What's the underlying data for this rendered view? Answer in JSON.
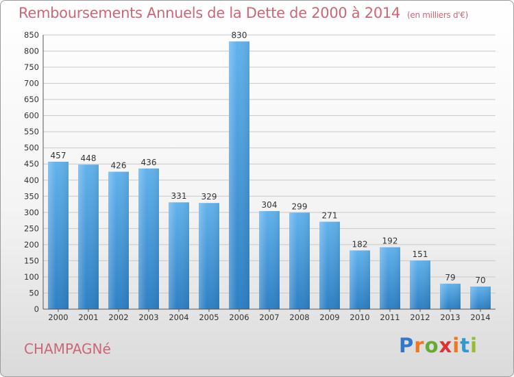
{
  "title": "Remboursements Annuels de la Dette de 2000 à 2014",
  "unit": "(en milliers d'€)",
  "footer": {
    "town": "CHAMPAGNé"
  },
  "logo": {
    "letters": [
      "P",
      "r",
      "o",
      "x",
      "i",
      "t",
      "i"
    ],
    "colors": [
      "#3377cc",
      "#ee7722",
      "#66aa33",
      "#dd3333",
      "#ee7722",
      "#3399cc",
      "#99bb33"
    ]
  },
  "colors": {
    "bar_top": "#62b2ec",
    "bar_bottom": "#2e7fc3",
    "text": "#cc6677"
  },
  "chart_data": {
    "type": "bar",
    "title": "Remboursements Annuels de la Dette de 2000 à 2014",
    "categories": [
      "2000",
      "2001",
      "2002",
      "2003",
      "2004",
      "2005",
      "2006",
      "2007",
      "2008",
      "2009",
      "2010",
      "2011",
      "2012",
      "2013",
      "2014"
    ],
    "values": [
      457,
      448,
      426,
      436,
      331,
      329,
      830,
      304,
      299,
      271,
      182,
      192,
      151,
      79,
      70
    ],
    "ylim": [
      0,
      850
    ],
    "yticks": [
      0,
      50,
      100,
      150,
      200,
      250,
      300,
      350,
      400,
      450,
      500,
      550,
      600,
      650,
      700,
      750,
      800,
      850
    ],
    "grid": true
  }
}
